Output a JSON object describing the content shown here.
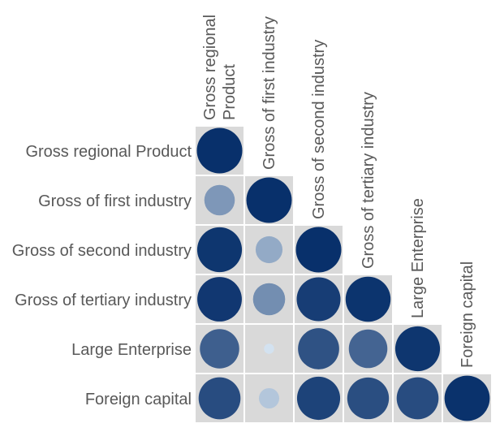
{
  "chart_data": {
    "type": "heatmap",
    "variables": [
      "Gross regional Product",
      "Gross of first industry",
      "Gross of second industry",
      "Gross of tertiary industry",
      "Large Enterprise",
      "Foreign capital"
    ],
    "column_labels": [
      "Gross regional\nProduct",
      "Gross of first industry",
      "Gross of second industry",
      "Gross of tertiary industry",
      "Large Enterprise",
      "Foreign capital"
    ],
    "matrix": [
      [
        1.0
      ],
      [
        0.45,
        1.0
      ],
      [
        0.97,
        0.35,
        1.0
      ],
      [
        0.96,
        0.5,
        0.93,
        0.98
      ],
      [
        0.75,
        0.05,
        0.82,
        0.72,
        0.97
      ],
      [
        0.85,
        0.2,
        0.9,
        0.84,
        0.85,
        0.99
      ]
    ],
    "layout": "lower-triangle",
    "grid": true,
    "colors": {
      "cell_background": "#d9d9d9",
      "scale_low": "#deebf7",
      "scale_high": "#08306b"
    }
  }
}
